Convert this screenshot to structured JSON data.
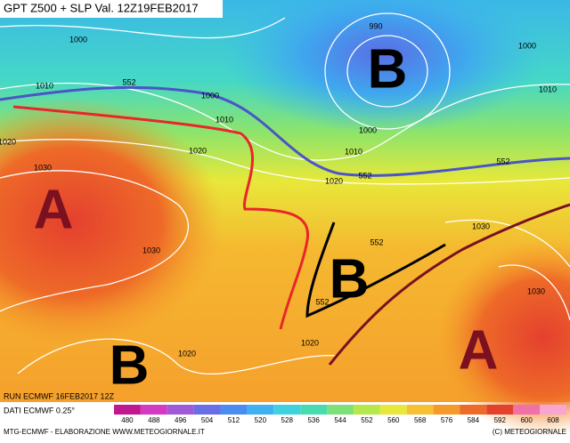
{
  "header": {
    "title": "GPT Z500 + SLP Val. 12Z19FEB2017"
  },
  "isobar_labels": [
    "1000",
    "990",
    "1000",
    "1010",
    "1000",
    "1010",
    "1010",
    "1000",
    "1020",
    "1010",
    "1020",
    "1030",
    "1030",
    "1030",
    "1020",
    "1020",
    "1030",
    "1020"
  ],
  "height_labels": [
    "552",
    "552",
    "552",
    "552",
    "552"
  ],
  "pressure_centers": [
    "B",
    "A",
    "B",
    "B",
    "A"
  ],
  "footer": {
    "run": "RUN ECMWF 16FEB2017 12Z",
    "data": "DATI ECMWF 0.25°",
    "credit": "MTG-ECMWF - ELABORAZIONE WWW.METEOGIORNALE.IT",
    "copyright": "(C) METEOGIORNALE"
  },
  "colorbar": {
    "ticks": [
      480,
      488,
      496,
      504,
      512,
      520,
      528,
      536,
      544,
      552,
      560,
      568,
      576,
      584,
      592,
      600,
      608
    ],
    "colors": [
      "#c0168f",
      "#d43ac0",
      "#a05ad8",
      "#6a6ee6",
      "#4a8cf0",
      "#3fb1f2",
      "#3ed2e0",
      "#47dcb0",
      "#7fe07a",
      "#b5e84a",
      "#e8e83a",
      "#f5c032",
      "#f59a2a",
      "#ee6a28",
      "#e4402e",
      "#f070a8",
      "#f8a6d0"
    ]
  }
}
